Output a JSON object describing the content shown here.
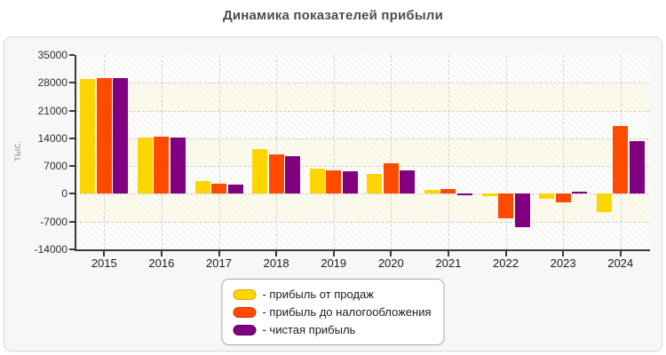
{
  "title": "Динамика показателей прибыли",
  "y_axis": {
    "unit_label": "тыс.",
    "tick_labels": [
      "35000",
      "28000",
      "21000",
      "14000",
      "7000",
      "0",
      "-7000",
      "-14000"
    ]
  },
  "x_axis": {
    "tick_labels": [
      "2015",
      "2016",
      "2017",
      "2018",
      "2019",
      "2020",
      "2021",
      "2022",
      "2023",
      "2024"
    ]
  },
  "legend": {
    "items": [
      {
        "label": "- прибыль от продаж",
        "color": "#FFD500",
        "border_color": "#E0A400"
      },
      {
        "label": "- прибыль до налогообложения",
        "color": "#FF4A00",
        "border_color": "#C93600"
      },
      {
        "label": "- чистая прибыль",
        "color": "#800080",
        "border_color": "#5A005A"
      }
    ]
  },
  "chart_data": {
    "type": "bar",
    "title": "Динамика показателей прибыли",
    "ylabel": "тыс.",
    "xlabel": "",
    "ylim": [
      -14000,
      35000
    ],
    "ytick_step": 7000,
    "grid": true,
    "legend_position": "bottom-center",
    "categories": [
      "2015",
      "2016",
      "2017",
      "2018",
      "2019",
      "2020",
      "2021",
      "2022",
      "2023",
      "2024"
    ],
    "series": [
      {
        "name": "прибыль от продаж",
        "color": "#FFD500",
        "values": [
          29000,
          14300,
          3300,
          11200,
          6300,
          5000,
          950,
          -500,
          -1350,
          -4600
        ]
      },
      {
        "name": "прибыль до налогообложения",
        "color": "#FF4A00",
        "values": [
          29200,
          14400,
          2600,
          9900,
          5900,
          7700,
          1300,
          -6200,
          -2100,
          17200
        ]
      },
      {
        "name": "чистая прибыль",
        "color": "#800080",
        "values": [
          29100,
          14100,
          2300,
          9600,
          5600,
          5900,
          -150,
          -8400,
          350,
          13300
        ]
      }
    ]
  }
}
